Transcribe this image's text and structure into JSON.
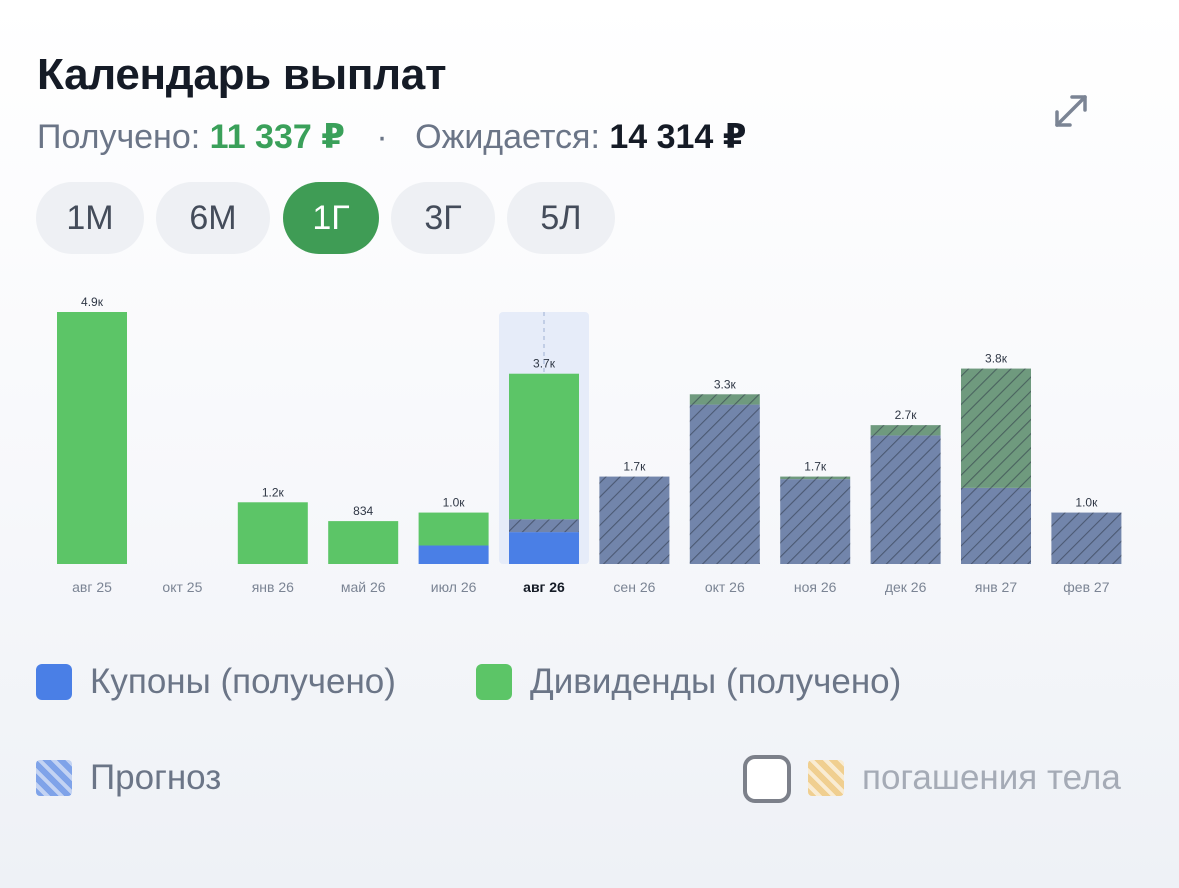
{
  "header": {
    "title": "Календарь выплат",
    "received_label": "Получено:",
    "received_value": "11 337 ₽",
    "separator": "·",
    "expected_label": "Ожидается:",
    "expected_value": "14 314 ₽",
    "expand_icon": "expand-arrows-icon"
  },
  "tabs": [
    {
      "label": "1М",
      "active": false
    },
    {
      "label": "6М",
      "active": false
    },
    {
      "label": "1Г",
      "active": true
    },
    {
      "label": "3Г",
      "active": false
    },
    {
      "label": "5Л",
      "active": false
    }
  ],
  "legend": {
    "coupons": "Купоны (получено)",
    "dividends": "Дивиденды (получено)",
    "forecast": "Прогноз",
    "body_repayment": "погашения тела",
    "body_repayment_checked": false
  },
  "colors": {
    "coupons": "#4a7fe6",
    "dividends": "#5cc567",
    "forecast_coupons": "#7285ab",
    "forecast_dividends": "#6f9a7e",
    "highlight": "#e6ecf9",
    "active_tab": "#3f9c55"
  },
  "chart_data": {
    "type": "bar",
    "stacked": true,
    "selected_category": "авг 26",
    "categories": [
      "авг 25",
      "окт 25",
      "янв 26",
      "май 26",
      "июл 26",
      "авг 26",
      "сен 26",
      "окт 26",
      "ноя 26",
      "дек 26",
      "янв 27",
      "фев 27"
    ],
    "total_labels": [
      "4.9к",
      "",
      "1.2к",
      "834",
      "1.0к",
      "3.7к",
      "1.7к",
      "3.3к",
      "1.7к",
      "2.7к",
      "3.8к",
      "1.0к"
    ],
    "series": [
      {
        "name": "Купоны (получено)",
        "values": [
          0,
          0,
          0,
          0,
          360,
          620,
          0,
          0,
          0,
          0,
          0,
          0
        ]
      },
      {
        "name": "Дивиденды (получено)",
        "values": [
          4900,
          0,
          1200,
          834,
          640,
          2830,
          0,
          0,
          0,
          0,
          0,
          0
        ]
      },
      {
        "name": "Прогноз",
        "part": "coupons",
        "values": [
          0,
          0,
          0,
          0,
          0,
          250,
          1700,
          3100,
          1650,
          2500,
          1480,
          1000
        ]
      },
      {
        "name": "Прогноз",
        "part": "dividends",
        "values": [
          0,
          0,
          0,
          0,
          0,
          0,
          0,
          200,
          50,
          200,
          2320,
          0
        ]
      }
    ],
    "ylim": [
      0,
      4900
    ],
    "grid": false
  }
}
